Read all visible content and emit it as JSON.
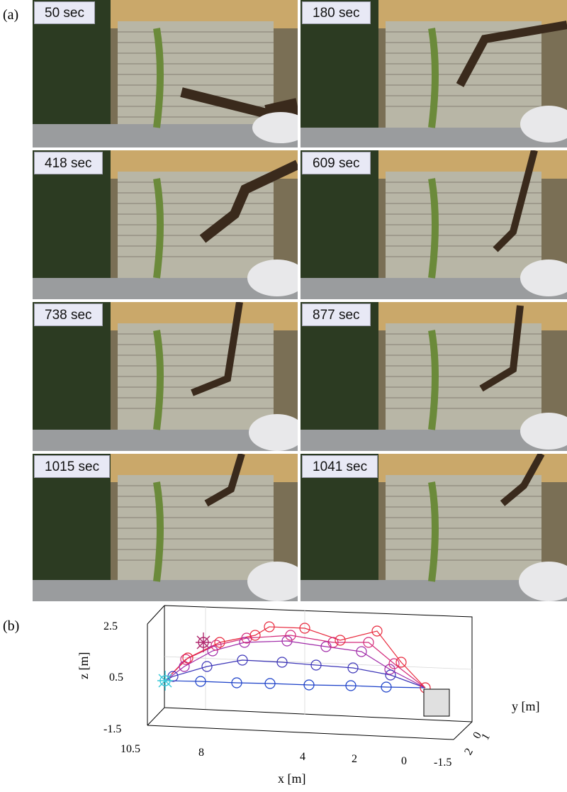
{
  "figure": {
    "panel_a_label": "(a)",
    "panel_b_label": "(b)"
  },
  "frames": [
    {
      "time": "50 sec"
    },
    {
      "time": "180 sec"
    },
    {
      "time": "418 sec"
    },
    {
      "time": "609 sec"
    },
    {
      "time": "738 sec"
    },
    {
      "time": "877 sec"
    },
    {
      "time": "1015 sec"
    },
    {
      "time": "1041 sec"
    }
  ],
  "plot3d": {
    "xlabel": "x [m]",
    "ylabel": "y [m]",
    "zlabel": "z [m]",
    "x_ticks": [
      "10.5",
      "8",
      "4",
      "2",
      "0",
      "-1.5"
    ],
    "z_ticks": [
      "2.5",
      "0.5",
      "-1.5"
    ],
    "y_ticks": [
      "0",
      "1",
      "2"
    ]
  }
}
